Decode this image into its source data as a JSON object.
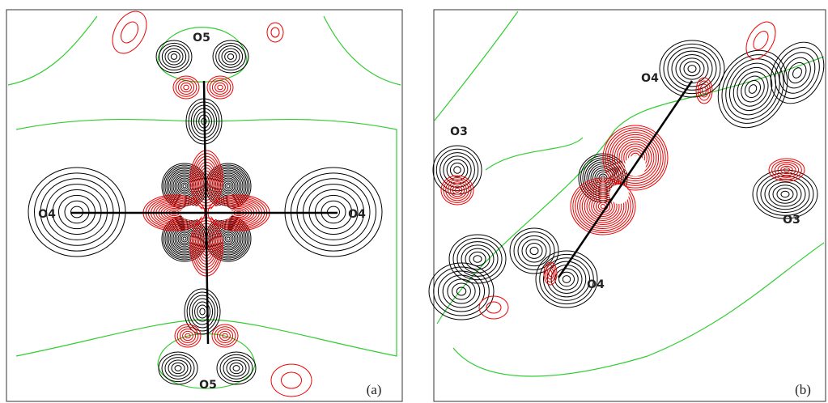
{
  "panels": [
    {
      "label": "(a)",
      "atoms": [
        "O5",
        "O4",
        "O4",
        "O5"
      ]
    },
    {
      "label": "(b)",
      "atoms": [
        "O4",
        "O3",
        "O3",
        "O4"
      ]
    }
  ]
}
